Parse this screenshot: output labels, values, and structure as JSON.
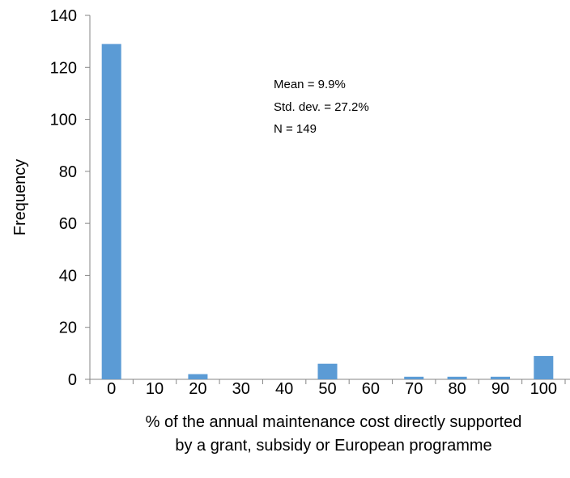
{
  "chart_data": {
    "type": "bar",
    "categories": [
      "0",
      "10",
      "20",
      "30",
      "40",
      "50",
      "60",
      "70",
      "80",
      "90",
      "100"
    ],
    "values": [
      129,
      0,
      2,
      0,
      0,
      6,
      0,
      1,
      1,
      1,
      9
    ],
    "xlabel": [
      "% of the annual maintenance cost directly supported",
      "by a grant, subsidy or European programme"
    ],
    "ylabel": "Frequency",
    "ylim": [
      0,
      140
    ],
    "yticks": [
      0,
      20,
      40,
      60,
      80,
      100,
      120,
      140
    ],
    "annotations": [
      "Mean = 9.9%",
      "Std. dev. = 27.2%",
      "N = 149"
    ],
    "grid": false,
    "legend": "none",
    "bar_color": "#5b9bd5"
  }
}
